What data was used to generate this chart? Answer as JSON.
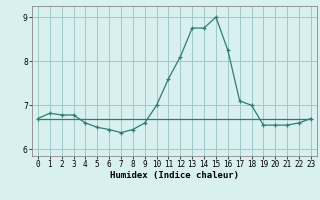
{
  "xlabel": "Humidex (Indice chaleur)",
  "x": [
    0,
    1,
    2,
    3,
    4,
    5,
    6,
    7,
    8,
    9,
    10,
    11,
    12,
    13,
    14,
    15,
    16,
    17,
    18,
    19,
    20,
    21,
    22,
    23
  ],
  "line1": [
    6.7,
    6.82,
    6.78,
    6.78,
    6.6,
    6.5,
    6.45,
    6.38,
    6.45,
    6.6,
    7.0,
    7.6,
    8.1,
    8.75,
    8.75,
    9.0,
    8.25,
    7.1,
    7.0,
    6.55,
    6.55,
    6.55,
    6.6,
    6.7
  ],
  "line2": [
    6.68,
    6.68,
    6.68,
    6.68,
    6.68,
    6.68,
    6.68,
    6.68,
    6.68,
    6.68,
    6.68,
    6.68,
    6.68,
    6.68,
    6.68,
    6.68,
    6.68,
    6.68,
    6.68,
    6.68,
    6.68,
    6.68,
    6.68,
    6.68
  ],
  "line_color": "#2e7d6e",
  "bg_color": "#d8f0f0",
  "grid_color": "#a0c8c8",
  "ylim": [
    5.85,
    9.25
  ],
  "yticks": [
    6,
    7,
    8,
    9
  ],
  "xlim": [
    -0.5,
    23.5
  ],
  "marker": "+"
}
